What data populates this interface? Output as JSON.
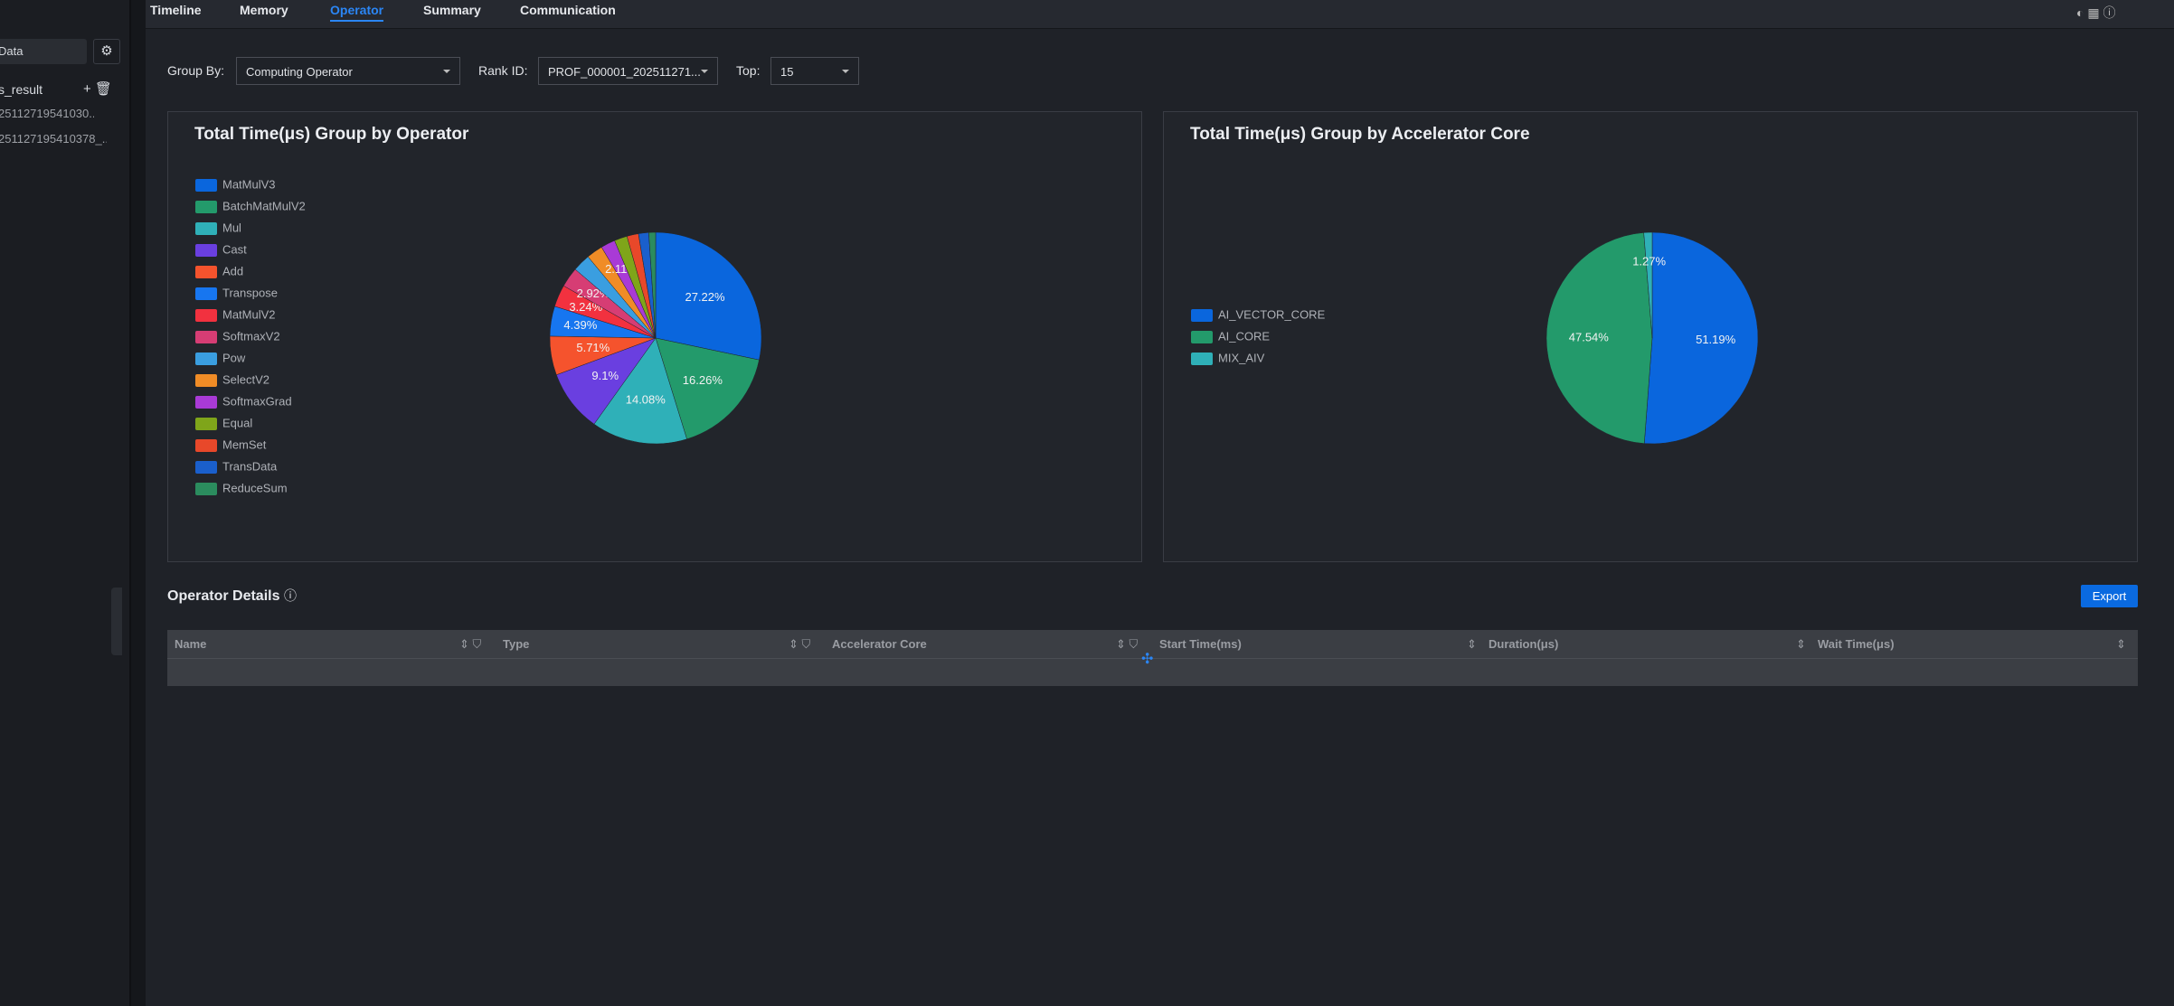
{
  "tabs": [
    "Timeline",
    "Memory",
    "Operator",
    "Summary",
    "Communication"
  ],
  "active_tab": 2,
  "sidebar": {
    "header": "Data",
    "project": "s_result",
    "files": [
      "25112719541030...",
      "251127195410378_..."
    ]
  },
  "filters": {
    "group_by_label": "Group By:",
    "group_by": "Computing Operator",
    "rank_label": "Rank ID:",
    "rank": "PROF_000001_202511271...",
    "top_label": "Top:",
    "top": "15"
  },
  "chart_data": [
    {
      "type": "pie",
      "title": "Total Time(μs) Group by Operator",
      "categories": [
        "MatMulV3",
        "BatchMatMulV2",
        "Mul",
        "Cast",
        "Add",
        "Transpose",
        "MatMulV2",
        "SoftmaxV2",
        "Pow",
        "SelectV2",
        "SoftmaxGrad",
        "Equal",
        "MemSet",
        "TransData",
        "ReduceSum"
      ],
      "values": [
        27.22,
        16.26,
        14.08,
        9.1,
        5.71,
        4.39,
        3.24,
        2.92,
        2.6,
        2.4,
        2.11,
        1.9,
        1.7,
        1.5,
        1.0
      ],
      "value_labels": [
        "27.22%",
        "16.26%",
        "14.08%",
        "9.1%",
        "5.71%",
        "4.39%",
        "3.24%",
        "2.92%",
        null,
        null,
        "2.11%",
        null,
        null,
        null,
        null
      ],
      "colors": [
        "#0a66dd",
        "#239a6b",
        "#2fb0b8",
        "#6a3fe0",
        "#f5532d",
        "#1776f0",
        "#f2313f",
        "#d63d74",
        "#3a9ee0",
        "#f08c26",
        "#a93ad6",
        "#7fa51a",
        "#e8482a",
        "#1a5fcc",
        "#2b8c5e"
      ],
      "legend": "left"
    },
    {
      "type": "pie",
      "title": "Total Time(μs) Group by Accelerator Core",
      "categories": [
        "AI_VECTOR_CORE",
        "AI_CORE",
        "MIX_AIV"
      ],
      "values": [
        51.19,
        47.54,
        1.27
      ],
      "value_labels": [
        "51.19%",
        "47.54%",
        "1.27%"
      ],
      "colors": [
        "#0a66dd",
        "#239a6b",
        "#2fb0b8"
      ],
      "legend": "left"
    }
  ],
  "details": {
    "title": "Operator Details",
    "export": "Export",
    "columns": [
      "Name",
      "Type",
      "Accelerator Core",
      "Start Time(ms)",
      "Duration(μs)",
      "Wait Time(μs)"
    ]
  }
}
